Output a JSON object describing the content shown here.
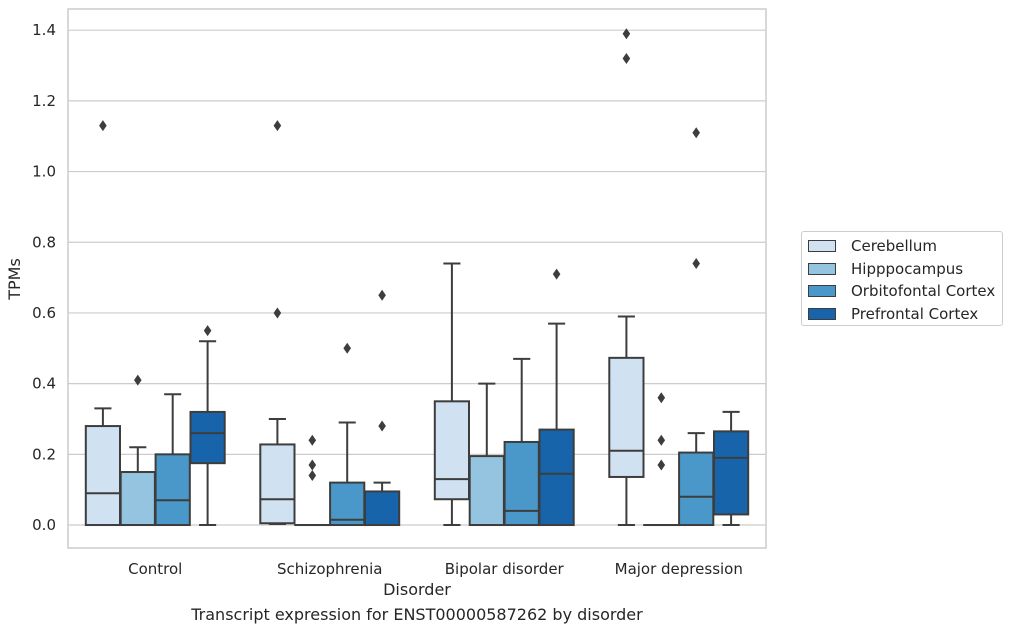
{
  "caption": "Transcript expression for ENST00000587262 by disorder",
  "chart_data": {
    "type": "box",
    "xlabel": "Disorder",
    "ylabel": "TPMs",
    "ylim": [
      -0.065,
      1.46
    ],
    "yticks": [
      0.0,
      0.2,
      0.4,
      0.6,
      0.8,
      1.0,
      1.2,
      1.4
    ],
    "ytick_labels": [
      "0.0",
      "0.2",
      "0.4",
      "0.6",
      "0.8",
      "1.0",
      "1.2",
      "1.4"
    ],
    "grid": "horizontal",
    "legend_position": "right",
    "categories": [
      "Control",
      "Schizophrenia",
      "Bipolar disorder",
      "Major depression"
    ],
    "series": [
      {
        "name": "Cerebellum",
        "color": "#d0e1f2",
        "boxes": [
          {
            "whislo": 0.0,
            "q1": 0.0,
            "med": 0.09,
            "q3": 0.28,
            "whishi": 0.33,
            "fliers": [
              1.13
            ]
          },
          {
            "whislo": 0.003,
            "q1": 0.005,
            "med": 0.073,
            "q3": 0.228,
            "whishi": 0.3,
            "fliers": [
              0.6,
              1.13
            ]
          },
          {
            "whislo": 0.0,
            "q1": 0.073,
            "med": 0.13,
            "q3": 0.35,
            "whishi": 0.74,
            "fliers": []
          },
          {
            "whislo": 0.0,
            "q1": 0.136,
            "med": 0.21,
            "q3": 0.473,
            "whishi": 0.59,
            "fliers": [
              1.32,
              1.39
            ]
          }
        ]
      },
      {
        "name": "Hipppocampus",
        "color": "#94c4df",
        "boxes": [
          {
            "whislo": 0.0,
            "q1": 0.0,
            "med": 0.0,
            "q3": 0.15,
            "whishi": 0.22,
            "fliers": [
              0.41
            ]
          },
          {
            "whislo": 0.0,
            "q1": 0.0,
            "med": 0.0,
            "q3": 0.0,
            "whishi": 0.0,
            "fliers": [
              0.14,
              0.17,
              0.24
            ]
          },
          {
            "whislo": 0.0,
            "q1": 0.0,
            "med": 0.0,
            "q3": 0.195,
            "whishi": 0.4,
            "fliers": []
          },
          {
            "whislo": 0.0,
            "q1": 0.0,
            "med": 0.0,
            "q3": 0.0,
            "whishi": 0.0,
            "fliers": [
              0.17,
              0.24,
              0.36
            ]
          }
        ]
      },
      {
        "name": "Orbitofontal Cortex",
        "color": "#4a98c9",
        "boxes": [
          {
            "whislo": 0.0,
            "q1": 0.0,
            "med": 0.07,
            "q3": 0.2,
            "whishi": 0.37,
            "fliers": []
          },
          {
            "whislo": 0.0,
            "q1": 0.0,
            "med": 0.015,
            "q3": 0.12,
            "whishi": 0.29,
            "fliers": [
              0.5
            ]
          },
          {
            "whislo": 0.0,
            "q1": 0.0,
            "med": 0.04,
            "q3": 0.235,
            "whishi": 0.47,
            "fliers": []
          },
          {
            "whislo": 0.0,
            "q1": 0.0,
            "med": 0.08,
            "q3": 0.205,
            "whishi": 0.26,
            "fliers": [
              0.74,
              1.11
            ]
          }
        ]
      },
      {
        "name": "Prefrontal Cortex",
        "color": "#1764ab",
        "boxes": [
          {
            "whislo": 0.0,
            "q1": 0.175,
            "med": 0.26,
            "q3": 0.32,
            "whishi": 0.52,
            "fliers": [
              0.55
            ]
          },
          {
            "whislo": 0.0,
            "q1": 0.0,
            "med": 0.0,
            "q3": 0.095,
            "whishi": 0.12,
            "fliers": [
              0.28,
              0.65
            ]
          },
          {
            "whislo": 0.0,
            "q1": 0.0,
            "med": 0.145,
            "q3": 0.27,
            "whishi": 0.57,
            "fliers": [
              0.71
            ]
          },
          {
            "whislo": 0.0,
            "q1": 0.03,
            "med": 0.19,
            "q3": 0.265,
            "whishi": 0.32,
            "fliers": []
          }
        ]
      }
    ]
  }
}
